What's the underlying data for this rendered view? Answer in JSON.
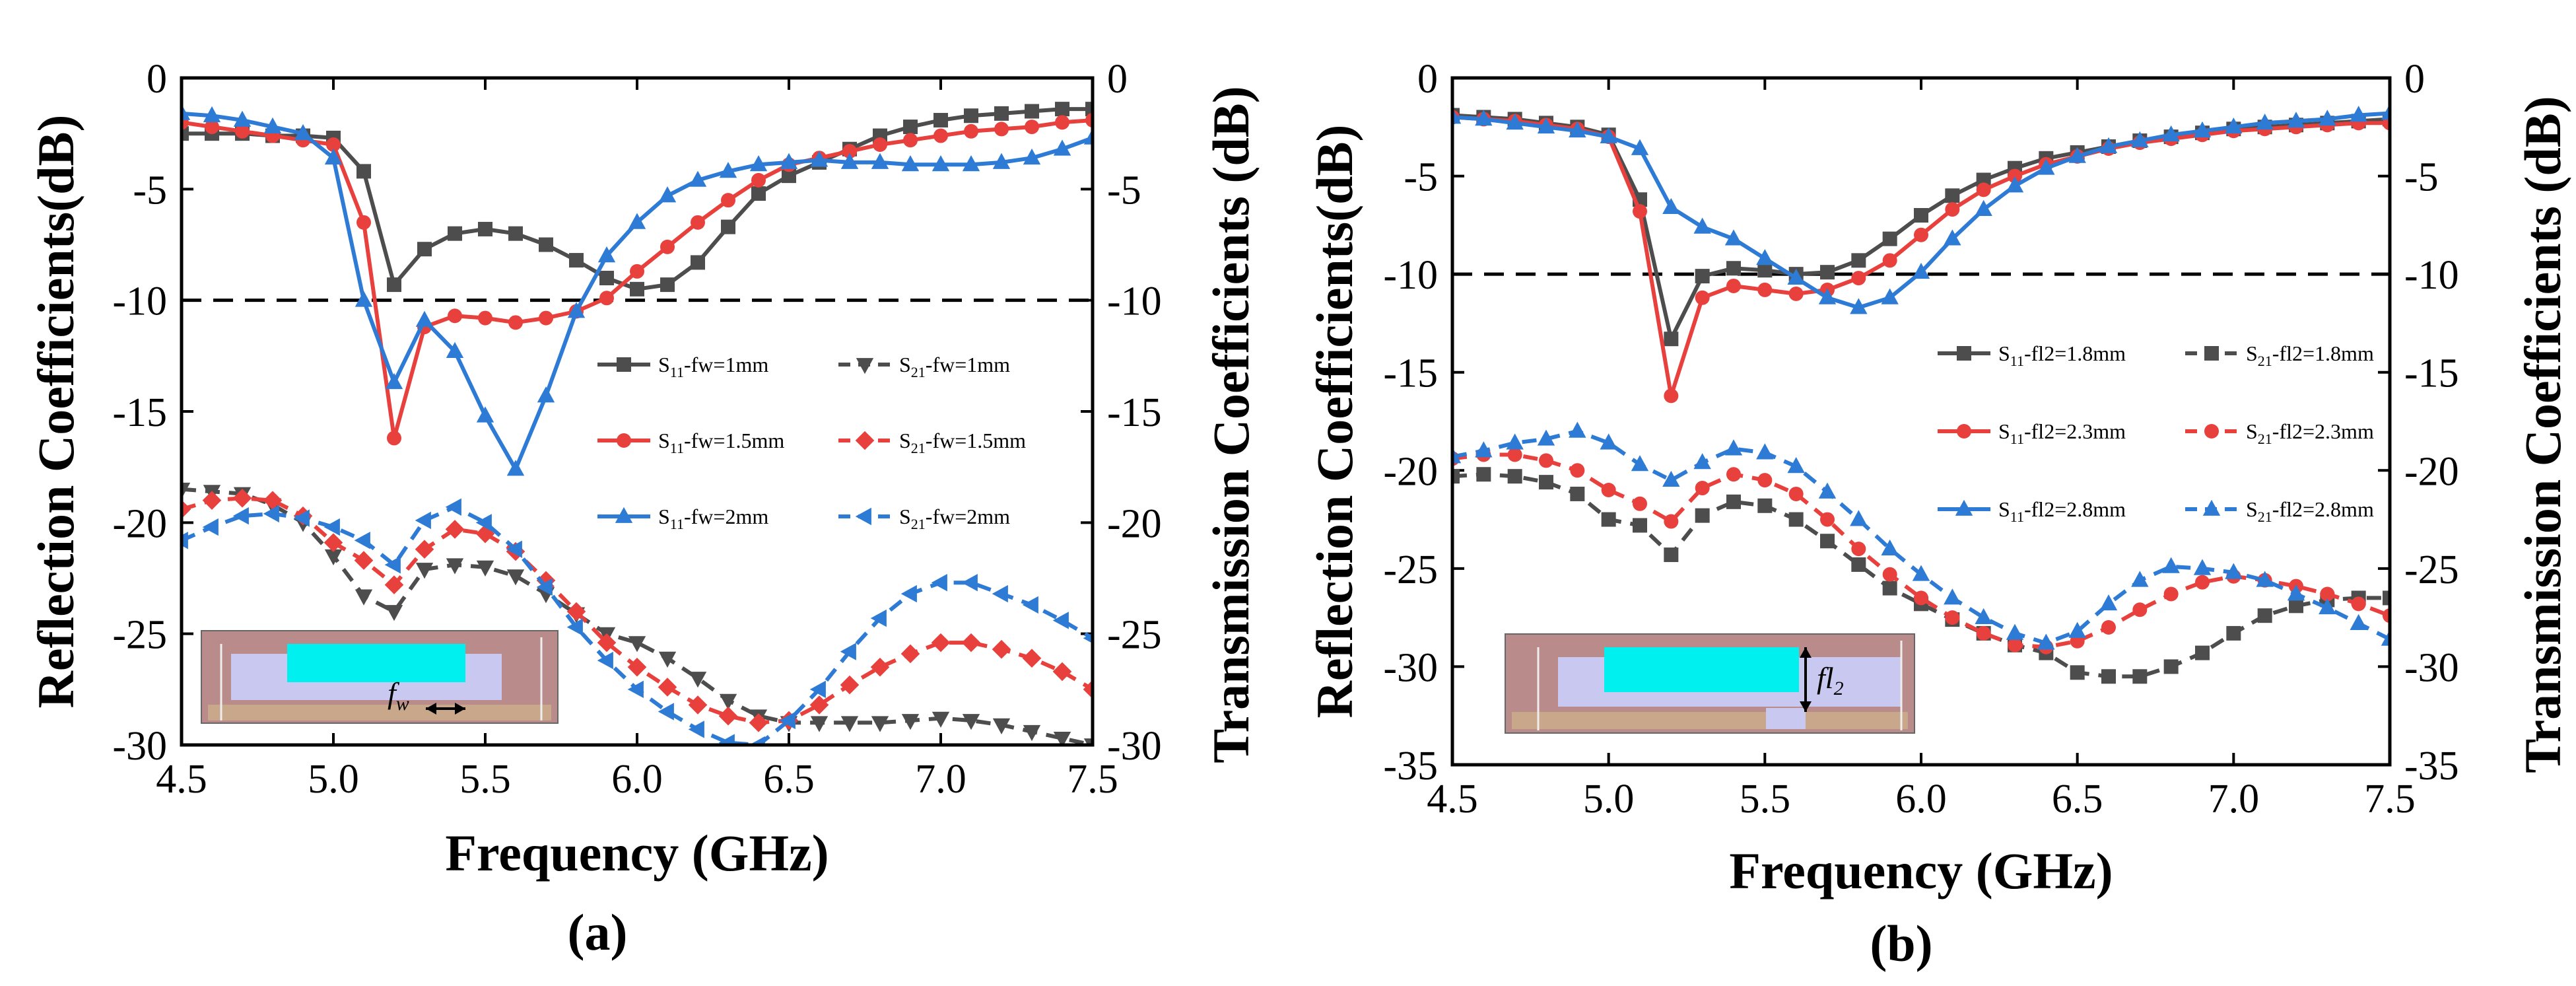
{
  "colors": {
    "black": "#4d4d4d",
    "red": "#e8403c",
    "blue": "#2e7bd6",
    "ref": "#000000",
    "cyan": "#00f0f0",
    "sub_bg": "#b98b8b",
    "lilac": "#c8c8f0",
    "tan": "#c8a78a"
  },
  "chart_data": [
    {
      "type": "line",
      "panel_label": "(a)",
      "xlabel": "Frequency (GHz)",
      "ylabel_left": "Reflection Coefficients(dB)",
      "ylabel_right": "Transmission Coefficients (dB)",
      "xlim": [
        4.5,
        7.5
      ],
      "ylim": [
        -30,
        0
      ],
      "xticks": [
        "4.5",
        "5.0",
        "5.5",
        "6.0",
        "6.5",
        "7.0",
        "7.5"
      ],
      "yticks": [
        "0",
        "-5",
        "-10",
        "-15",
        "-20",
        "-25",
        "-30"
      ],
      "reference_line": -10,
      "x": [
        4.5,
        4.6,
        4.7,
        4.8,
        4.9,
        5.0,
        5.1,
        5.2,
        5.3,
        5.4,
        5.5,
        5.6,
        5.7,
        5.8,
        5.9,
        6.0,
        6.1,
        6.2,
        6.3,
        6.4,
        6.5,
        6.6,
        6.7,
        6.8,
        6.9,
        7.0,
        7.1,
        7.2,
        7.3,
        7.4,
        7.5
      ],
      "series": [
        {
          "name": "S11-fw=1mm",
          "legend_main": "S",
          "legend_sub": "11",
          "legend_tail": "-fw=1mm",
          "color": "black",
          "marker": "square",
          "dashed": false,
          "values": [
            -2.5,
            -2.5,
            -2.5,
            -2.6,
            -2.6,
            -2.7,
            -4.2,
            -9.3,
            -7.7,
            -7.0,
            -6.8,
            -7.0,
            -7.5,
            -8.2,
            -9.0,
            -9.5,
            -9.3,
            -8.3,
            -6.7,
            -5.2,
            -4.4,
            -3.8,
            -3.2,
            -2.6,
            -2.2,
            -1.9,
            -1.7,
            -1.6,
            -1.5,
            -1.4,
            -1.4
          ]
        },
        {
          "name": "S11-fw=1.5mm",
          "legend_main": "S",
          "legend_sub": "11",
          "legend_tail": "-fw=1.5mm",
          "color": "red",
          "marker": "circle",
          "dashed": false,
          "values": [
            -2.0,
            -2.2,
            -2.4,
            -2.6,
            -2.8,
            -3.0,
            -6.5,
            -16.2,
            -11.2,
            -10.7,
            -10.8,
            -11.0,
            -10.8,
            -10.5,
            -9.9,
            -8.7,
            -7.6,
            -6.5,
            -5.5,
            -4.6,
            -3.9,
            -3.6,
            -3.3,
            -3.0,
            -2.8,
            -2.6,
            -2.4,
            -2.3,
            -2.2,
            -2.0,
            -1.9
          ]
        },
        {
          "name": "S11-fw=2mm",
          "legend_main": "S",
          "legend_sub": "11",
          "legend_tail": "-fw=2mm",
          "color": "blue",
          "marker": "triangle",
          "dashed": false,
          "values": [
            -1.6,
            -1.7,
            -1.9,
            -2.2,
            -2.5,
            -3.6,
            -10.0,
            -13.7,
            -10.9,
            -12.3,
            -15.2,
            -17.6,
            -14.3,
            -10.5,
            -8.0,
            -6.5,
            -5.3,
            -4.6,
            -4.2,
            -3.9,
            -3.8,
            -3.7,
            -3.8,
            -3.8,
            -3.9,
            -3.9,
            -3.9,
            -3.8,
            -3.6,
            -3.2,
            -2.7
          ]
        },
        {
          "name": "S21-fw=1mm",
          "legend_main": "S",
          "legend_sub": "21",
          "legend_tail": "-fw=1mm",
          "color": "black",
          "marker": "triangle-down",
          "dashed": true,
          "values": [
            -18.5,
            -18.6,
            -18.7,
            -19.2,
            -20.0,
            -21.5,
            -23.3,
            -24.0,
            -22.1,
            -21.9,
            -22.0,
            -22.4,
            -23.2,
            -24.1,
            -25.0,
            -25.4,
            -26.1,
            -27.0,
            -28.0,
            -28.7,
            -29.0,
            -29.0,
            -29.0,
            -29.0,
            -28.9,
            -28.8,
            -28.9,
            -29.1,
            -29.4,
            -29.7,
            -30.0
          ]
        },
        {
          "name": "S21-fw=1.5mm",
          "legend_main": "S",
          "legend_sub": "21",
          "legend_tail": "-fw=1.5mm",
          "color": "red",
          "marker": "diamond",
          "dashed": true,
          "values": [
            -19.4,
            -19.0,
            -18.9,
            -19.0,
            -19.7,
            -20.9,
            -21.7,
            -22.8,
            -21.2,
            -20.3,
            -20.5,
            -21.3,
            -22.6,
            -24.0,
            -25.4,
            -26.5,
            -27.4,
            -28.2,
            -28.7,
            -29.0,
            -28.9,
            -28.2,
            -27.3,
            -26.5,
            -25.9,
            -25.4,
            -25.4,
            -25.7,
            -26.1,
            -26.7,
            -27.5
          ]
        },
        {
          "name": "S21-fw=2mm",
          "legend_main": "S",
          "legend_sub": "21",
          "legend_tail": "-fw=2mm",
          "color": "blue",
          "marker": "triangle-left",
          "dashed": true,
          "values": [
            -20.8,
            -20.2,
            -19.7,
            -19.6,
            -19.8,
            -20.2,
            -20.8,
            -21.9,
            -19.9,
            -19.3,
            -20.0,
            -21.2,
            -22.9,
            -24.7,
            -26.2,
            -27.5,
            -28.5,
            -29.3,
            -29.9,
            -30.0,
            -28.9,
            -27.5,
            -25.8,
            -24.3,
            -23.2,
            -22.7,
            -22.7,
            -23.2,
            -23.7,
            -24.4,
            -25.2
          ]
        }
      ],
      "inset": {
        "label": "f",
        "label_sub": "w"
      }
    },
    {
      "type": "line",
      "panel_label": "(b)",
      "xlabel": "Frequency (GHz)",
      "ylabel_left": "Reflection Coefficients(dB)",
      "ylabel_right": "Transmission Coefficients (dB)",
      "xlim": [
        4.5,
        7.5
      ],
      "ylim": [
        -35,
        0
      ],
      "xticks": [
        "4.5",
        "5.0",
        "5.5",
        "6.0",
        "6.5",
        "7.0",
        "7.5"
      ],
      "yticks": [
        "0",
        "-5",
        "-10",
        "-15",
        "-20",
        "-25",
        "-30",
        "-35"
      ],
      "reference_line": -10,
      "x": [
        4.5,
        4.6,
        4.7,
        4.8,
        4.9,
        5.0,
        5.1,
        5.2,
        5.3,
        5.4,
        5.5,
        5.6,
        5.7,
        5.8,
        5.9,
        6.0,
        6.1,
        6.2,
        6.3,
        6.4,
        6.5,
        6.6,
        6.7,
        6.8,
        6.9,
        7.0,
        7.1,
        7.2,
        7.3,
        7.4,
        7.5
      ],
      "series": [
        {
          "name": "S11-fl2=1.8mm",
          "legend_main": "S",
          "legend_sub": "11",
          "legend_tail": "-fl2=1.8mm",
          "color": "black",
          "marker": "square",
          "dashed": false,
          "values": [
            -1.9,
            -2.0,
            -2.1,
            -2.3,
            -2.5,
            -2.9,
            -6.2,
            -13.3,
            -10.1,
            -9.7,
            -9.8,
            -10.0,
            -9.9,
            -9.3,
            -8.2,
            -7.0,
            -6.0,
            -5.2,
            -4.6,
            -4.1,
            -3.8,
            -3.5,
            -3.2,
            -3.0,
            -2.8,
            -2.6,
            -2.5,
            -2.4,
            -2.3,
            -2.2,
            -2.1
          ]
        },
        {
          "name": "S11-fl2=2.3mm",
          "legend_main": "S",
          "legend_sub": "11",
          "legend_tail": "-fl2=2.3mm",
          "color": "red",
          "marker": "circle",
          "dashed": false,
          "values": [
            -2.0,
            -2.1,
            -2.2,
            -2.4,
            -2.6,
            -3.0,
            -6.8,
            -16.2,
            -11.2,
            -10.6,
            -10.8,
            -11.0,
            -10.8,
            -10.2,
            -9.3,
            -8.0,
            -6.7,
            -5.7,
            -5.0,
            -4.4,
            -4.0,
            -3.6,
            -3.3,
            -3.1,
            -2.9,
            -2.7,
            -2.6,
            -2.5,
            -2.4,
            -2.3,
            -2.3
          ]
        },
        {
          "name": "S11-fl2=2.8mm",
          "legend_main": "S",
          "legend_sub": "11",
          "legend_tail": "-fl2=2.8mm",
          "color": "blue",
          "marker": "triangle",
          "dashed": false,
          "values": [
            -2.0,
            -2.1,
            -2.3,
            -2.5,
            -2.7,
            -3.0,
            -3.6,
            -6.6,
            -7.6,
            -8.2,
            -9.2,
            -10.2,
            -11.2,
            -11.7,
            -11.2,
            -9.9,
            -8.2,
            -6.7,
            -5.5,
            -4.6,
            -4.0,
            -3.5,
            -3.2,
            -2.9,
            -2.7,
            -2.5,
            -2.3,
            -2.2,
            -2.1,
            -1.9,
            -1.8
          ]
        },
        {
          "name": "S21-fl2=1.8mm",
          "legend_main": "S",
          "legend_sub": "21",
          "legend_tail": "-fl2=1.8mm",
          "color": "black",
          "marker": "square",
          "dashed": true,
          "values": [
            -20.3,
            -20.2,
            -20.3,
            -20.6,
            -21.2,
            -22.5,
            -22.8,
            -24.3,
            -22.3,
            -21.6,
            -21.8,
            -22.5,
            -23.6,
            -24.8,
            -26.0,
            -26.8,
            -27.6,
            -28.3,
            -28.9,
            -29.3,
            -30.3,
            -30.5,
            -30.5,
            -30.0,
            -29.3,
            -28.3,
            -27.4,
            -26.9,
            -26.6,
            -26.5,
            -26.5
          ]
        },
        {
          "name": "S21-fl2=2.3mm",
          "legend_main": "S",
          "legend_sub": "21",
          "legend_tail": "-fl2=2.3mm",
          "color": "red",
          "marker": "circle",
          "dashed": true,
          "values": [
            -19.4,
            -19.2,
            -19.2,
            -19.5,
            -20.0,
            -21.0,
            -21.7,
            -22.6,
            -20.9,
            -20.2,
            -20.5,
            -21.2,
            -22.5,
            -24.0,
            -25.3,
            -26.5,
            -27.5,
            -28.3,
            -28.9,
            -29.0,
            -28.7,
            -28.0,
            -27.1,
            -26.3,
            -25.7,
            -25.4,
            -25.6,
            -25.9,
            -26.3,
            -26.8,
            -27.4
          ]
        },
        {
          "name": "S21-fl2=2.8mm",
          "legend_main": "S",
          "legend_sub": "21",
          "legend_tail": "-fl2=2.8mm",
          "color": "blue",
          "marker": "triangle",
          "dashed": true,
          "values": [
            -19.3,
            -19.0,
            -18.6,
            -18.4,
            -18.0,
            -18.6,
            -19.7,
            -20.5,
            -19.6,
            -18.9,
            -19.1,
            -19.8,
            -21.1,
            -22.5,
            -24.0,
            -25.3,
            -26.5,
            -27.5,
            -28.3,
            -28.8,
            -28.2,
            -26.8,
            -25.6,
            -24.9,
            -25.0,
            -25.2,
            -25.6,
            -26.3,
            -27.0,
            -27.8,
            -28.6
          ]
        }
      ],
      "inset": {
        "label": "fl",
        "label_sub": "2"
      }
    }
  ]
}
